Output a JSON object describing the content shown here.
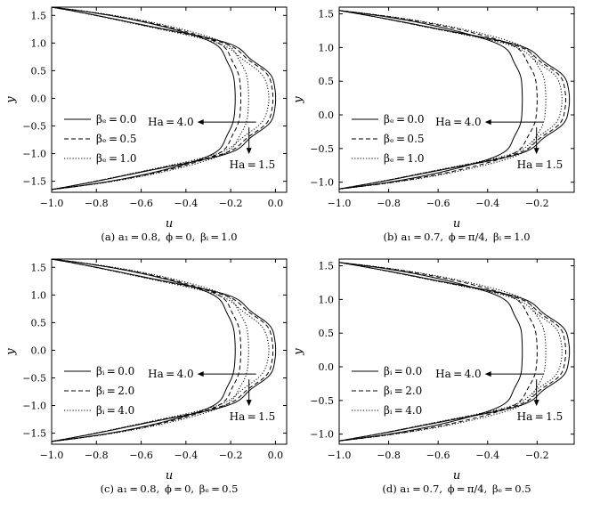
{
  "chart_data": [
    {
      "type": "line",
      "caption": "(a) a₁=0.8, ϕ=0, βᵢ=1.0",
      "xlabel": "u",
      "ylabel": "y",
      "xlim": [
        -1.0,
        0.05
      ],
      "ylim": [
        -1.7,
        1.65
      ],
      "xticks": [
        "-1.0",
        "-0.8",
        "-0.6",
        "-0.4",
        "-0.2",
        "0.0"
      ],
      "yticks": [
        "-1.5",
        "-1.0",
        "-0.5",
        "0.0",
        "0.5",
        "1.0",
        "1.5"
      ],
      "y_bottom": -1.65,
      "y_top": 1.65,
      "legend": [
        "βₑ=0.0",
        "βₑ=0.5",
        "βₑ=1.0"
      ],
      "annotations": {
        "high": "Ha=4.0",
        "low": "Ha=1.5"
      },
      "series": [
        {
          "style": "solid",
          "hartmann": "4.0",
          "peak": [
            -0.2,
            -0.19,
            -0.18
          ]
        },
        {
          "style": "solid",
          "hartmann": "1.5",
          "peak": [
            -0.04,
            -0.015,
            0.0
          ]
        },
        {
          "style": "dashed",
          "hartmann": "4.0",
          "peak": [
            -0.175,
            -0.165,
            -0.155
          ]
        },
        {
          "style": "dashed",
          "hartmann": "1.5",
          "peak": [
            -0.07,
            -0.03,
            -0.012
          ]
        },
        {
          "style": "dotted",
          "hartmann": "4.0",
          "peak": [
            -0.15,
            -0.13,
            -0.12
          ]
        },
        {
          "style": "dotted",
          "hartmann": "1.5",
          "peak": [
            -0.12,
            -0.06,
            -0.03
          ]
        }
      ]
    },
    {
      "type": "line",
      "caption": "(b) a₁=0.7, ϕ=π/4, βᵢ=1.0",
      "xlabel": "u",
      "ylabel": "y",
      "xlim": [
        -1.0,
        -0.05
      ],
      "ylim": [
        -1.15,
        1.6
      ],
      "xticks": [
        "-1.0",
        "-0.8",
        "-0.6",
        "-0.4",
        "-0.2"
      ],
      "yticks": [
        "-1.0",
        "-0.5",
        "0.0",
        "0.5",
        "1.0",
        "1.5"
      ],
      "y_bottom": -1.1,
      "y_top": 1.55,
      "legend": [
        "βₑ=0.0",
        "βₑ=0.5",
        "βₑ=1.0"
      ],
      "annotations": {
        "high": "Ha=4.0",
        "low": "Ha=1.5"
      },
      "series": [
        {
          "style": "solid",
          "hartmann": "4.0",
          "peak": [
            -0.27,
            -0.265,
            -0.26
          ]
        },
        {
          "style": "solid",
          "hartmann": "1.5",
          "peak": [
            -0.11,
            -0.085,
            -0.07
          ]
        },
        {
          "style": "dashed",
          "hartmann": "4.0",
          "peak": [
            -0.225,
            -0.21,
            -0.2
          ]
        },
        {
          "style": "dashed",
          "hartmann": "1.5",
          "peak": [
            -0.13,
            -0.1,
            -0.085
          ]
        },
        {
          "style": "dotted",
          "hartmann": "4.0",
          "peak": [
            -0.19,
            -0.175,
            -0.165
          ]
        },
        {
          "style": "dotted",
          "hartmann": "1.5",
          "peak": [
            -0.16,
            -0.12,
            -0.1
          ]
        }
      ]
    },
    {
      "type": "line",
      "caption": "(c) a₁=0.8, ϕ=0, βₑ=0.5",
      "xlabel": "u",
      "ylabel": "y",
      "xlim": [
        -1.0,
        0.05
      ],
      "ylim": [
        -1.7,
        1.65
      ],
      "xticks": [
        "-1.0",
        "-0.8",
        "-0.6",
        "-0.4",
        "-0.2",
        "0.0"
      ],
      "yticks": [
        "-1.5",
        "-1.0",
        "-0.5",
        "0.0",
        "0.5",
        "1.0",
        "1.5"
      ],
      "y_bottom": -1.65,
      "y_top": 1.65,
      "legend": [
        "βᵢ=0.0",
        "βᵢ=2.0",
        "βᵢ=4.0"
      ],
      "annotations": {
        "high": "Ha=4.0",
        "low": "Ha=1.5"
      },
      "series": [
        {
          "style": "solid",
          "hartmann": "4.0",
          "peak": [
            -0.2,
            -0.19,
            -0.18
          ]
        },
        {
          "style": "solid",
          "hartmann": "1.5",
          "peak": [
            -0.04,
            -0.015,
            0.0
          ]
        },
        {
          "style": "dashed",
          "hartmann": "4.0",
          "peak": [
            -0.175,
            -0.165,
            -0.155
          ]
        },
        {
          "style": "dashed",
          "hartmann": "1.5",
          "peak": [
            -0.07,
            -0.03,
            -0.012
          ]
        },
        {
          "style": "dotted",
          "hartmann": "4.0",
          "peak": [
            -0.15,
            -0.13,
            -0.12
          ]
        },
        {
          "style": "dotted",
          "hartmann": "1.5",
          "peak": [
            -0.12,
            -0.06,
            -0.03
          ]
        }
      ]
    },
    {
      "type": "line",
      "caption": "(d) a₁=0.7, ϕ=π/4, βₑ=0.5",
      "xlabel": "u",
      "ylabel": "y",
      "xlim": [
        -1.0,
        -0.05
      ],
      "ylim": [
        -1.15,
        1.6
      ],
      "xticks": [
        "-1.0",
        "-0.8",
        "-0.6",
        "-0.4",
        "-0.2"
      ],
      "yticks": [
        "-1.0",
        "-0.5",
        "0.0",
        "0.5",
        "1.0",
        "1.5"
      ],
      "y_bottom": -1.1,
      "y_top": 1.55,
      "legend": [
        "βᵢ=0.0",
        "βᵢ=2.0",
        "βᵢ=4.0"
      ],
      "annotations": {
        "high": "Ha=4.0",
        "low": "Ha=1.5"
      },
      "series": [
        {
          "style": "solid",
          "hartmann": "4.0",
          "peak": [
            -0.27,
            -0.265,
            -0.26
          ]
        },
        {
          "style": "solid",
          "hartmann": "1.5",
          "peak": [
            -0.11,
            -0.085,
            -0.07
          ]
        },
        {
          "style": "dashed",
          "hartmann": "4.0",
          "peak": [
            -0.225,
            -0.21,
            -0.2
          ]
        },
        {
          "style": "dashed",
          "hartmann": "1.5",
          "peak": [
            -0.13,
            -0.1,
            -0.085
          ]
        },
        {
          "style": "dotted",
          "hartmann": "4.0",
          "peak": [
            -0.19,
            -0.175,
            -0.165
          ]
        },
        {
          "style": "dotted",
          "hartmann": "1.5",
          "peak": [
            -0.16,
            -0.12,
            -0.1
          ]
        }
      ]
    }
  ]
}
